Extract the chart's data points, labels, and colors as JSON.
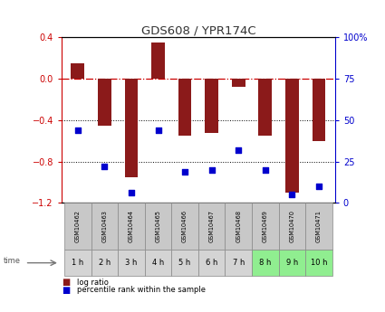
{
  "title": "GDS608 / YPR174C",
  "samples": [
    "GSM10462",
    "GSM10463",
    "GSM10464",
    "GSM10465",
    "GSM10466",
    "GSM10467",
    "GSM10468",
    "GSM10469",
    "GSM10470",
    "GSM10471"
  ],
  "time_labels": [
    "1 h",
    "2 h",
    "3 h",
    "4 h",
    "5 h",
    "6 h",
    "7 h",
    "8 h",
    "9 h",
    "10 h"
  ],
  "log_ratio": [
    0.15,
    -0.45,
    -0.95,
    0.35,
    -0.55,
    -0.52,
    -0.08,
    -0.55,
    -1.1,
    -0.6
  ],
  "percentile_rank": [
    44,
    22,
    6,
    44,
    19,
    20,
    32,
    20,
    5,
    10
  ],
  "ylim": [
    -1.2,
    0.4
  ],
  "yticks_left": [
    -1.2,
    -0.8,
    -0.4,
    0.0,
    0.4
  ],
  "yticks_right": [
    0,
    25,
    50,
    75,
    100
  ],
  "bar_color": "#8B1A1A",
  "scatter_color": "#0000CD",
  "zero_line_color": "#CC0000",
  "grid_color": "#000000",
  "right_axis_color": "#0000CD",
  "left_axis_color": "#CC0000",
  "bar_width": 0.5,
  "time_row_colors": [
    "#d4d4d4",
    "#d4d4d4",
    "#d4d4d4",
    "#d4d4d4",
    "#d4d4d4",
    "#d4d4d4",
    "#d4d4d4",
    "#90EE90",
    "#90EE90",
    "#90EE90"
  ],
  "sample_row_colors": [
    "#c8c8c8",
    "#c8c8c8",
    "#c8c8c8",
    "#c8c8c8",
    "#c8c8c8",
    "#c8c8c8",
    "#c8c8c8",
    "#c8c8c8",
    "#c8c8c8",
    "#c8c8c8"
  ],
  "legend_log_label": "log ratio",
  "legend_pct_label": "percentile rank within the sample",
  "time_arrow_label": "time"
}
